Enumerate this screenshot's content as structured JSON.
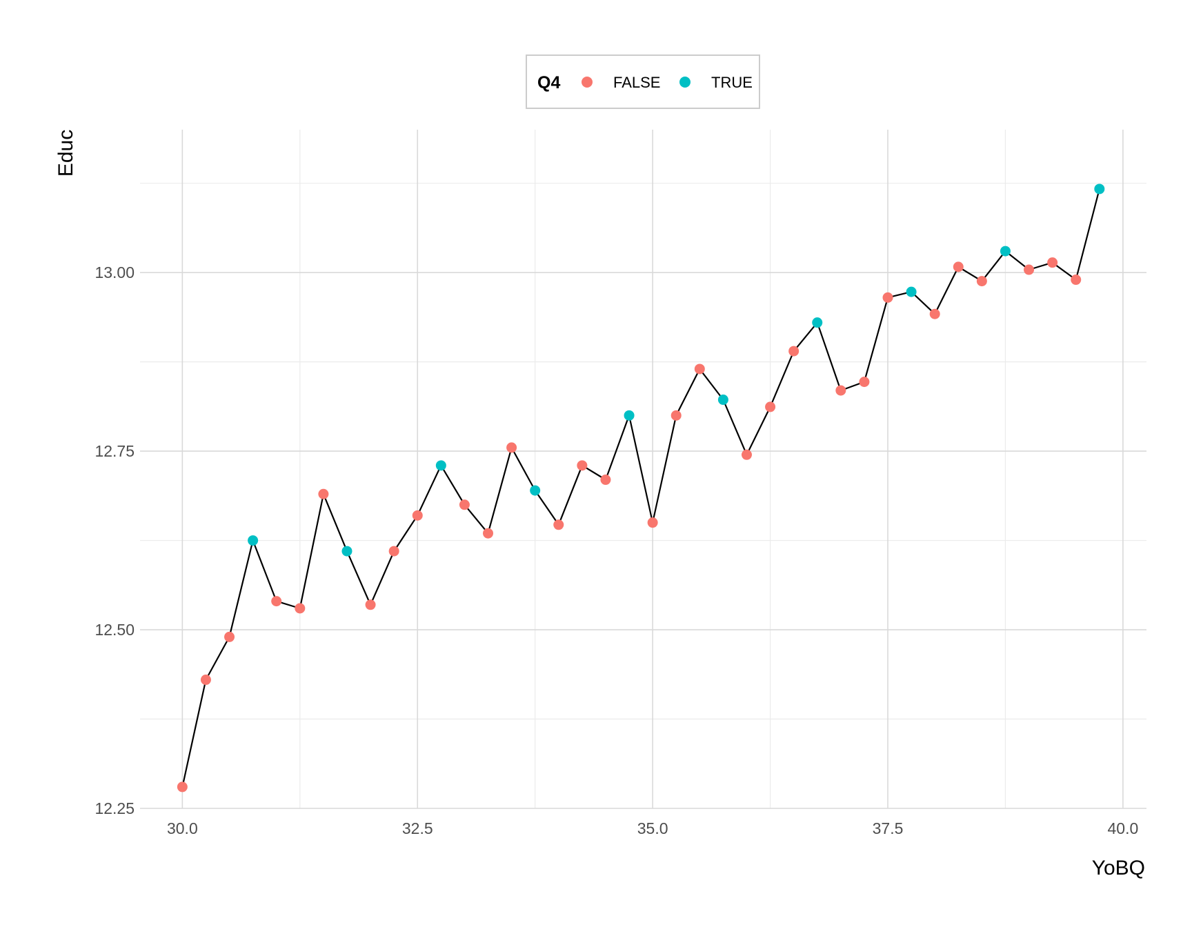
{
  "chart_data": {
    "type": "line",
    "xlabel": "YoBQ",
    "ylabel": "Educ",
    "xlim": [
      29.55,
      40.25
    ],
    "ylim": [
      12.25,
      13.2
    ],
    "x_ticks": [
      30.0,
      32.5,
      35.0,
      37.5,
      40.0
    ],
    "x_tick_labels": [
      "30.0",
      "32.5",
      "35.0",
      "37.5",
      "40.0"
    ],
    "y_ticks": [
      12.25,
      12.5,
      12.75,
      13.0
    ],
    "y_tick_labels": [
      "12.25",
      "12.50",
      "12.75",
      "13.00"
    ],
    "grid": true,
    "line_color": "#000000",
    "legend": {
      "title": "Q4",
      "position": "top",
      "entries": [
        {
          "label": "FALSE",
          "color": "#F8766D"
        },
        {
          "label": "TRUE",
          "color": "#00BFC4"
        }
      ]
    },
    "points": [
      {
        "x": 30.0,
        "y": 12.28,
        "q4": "FALSE"
      },
      {
        "x": 30.25,
        "y": 12.43,
        "q4": "FALSE"
      },
      {
        "x": 30.5,
        "y": 12.49,
        "q4": "FALSE"
      },
      {
        "x": 30.75,
        "y": 12.625,
        "q4": "TRUE"
      },
      {
        "x": 31.0,
        "y": 12.54,
        "q4": "FALSE"
      },
      {
        "x": 31.25,
        "y": 12.53,
        "q4": "FALSE"
      },
      {
        "x": 31.5,
        "y": 12.69,
        "q4": "FALSE"
      },
      {
        "x": 31.75,
        "y": 12.61,
        "q4": "TRUE"
      },
      {
        "x": 32.0,
        "y": 12.535,
        "q4": "FALSE"
      },
      {
        "x": 32.25,
        "y": 12.61,
        "q4": "FALSE"
      },
      {
        "x": 32.5,
        "y": 12.66,
        "q4": "FALSE"
      },
      {
        "x": 32.75,
        "y": 12.73,
        "q4": "TRUE"
      },
      {
        "x": 33.0,
        "y": 12.675,
        "q4": "FALSE"
      },
      {
        "x": 33.25,
        "y": 12.635,
        "q4": "FALSE"
      },
      {
        "x": 33.5,
        "y": 12.755,
        "q4": "FALSE"
      },
      {
        "x": 33.75,
        "y": 12.695,
        "q4": "TRUE"
      },
      {
        "x": 34.0,
        "y": 12.647,
        "q4": "FALSE"
      },
      {
        "x": 34.25,
        "y": 12.73,
        "q4": "FALSE"
      },
      {
        "x": 34.5,
        "y": 12.71,
        "q4": "FALSE"
      },
      {
        "x": 34.75,
        "y": 12.8,
        "q4": "TRUE"
      },
      {
        "x": 35.0,
        "y": 12.65,
        "q4": "FALSE"
      },
      {
        "x": 35.25,
        "y": 12.8,
        "q4": "FALSE"
      },
      {
        "x": 35.5,
        "y": 12.865,
        "q4": "FALSE"
      },
      {
        "x": 35.75,
        "y": 12.822,
        "q4": "TRUE"
      },
      {
        "x": 36.0,
        "y": 12.745,
        "q4": "FALSE"
      },
      {
        "x": 36.25,
        "y": 12.812,
        "q4": "FALSE"
      },
      {
        "x": 36.5,
        "y": 12.89,
        "q4": "FALSE"
      },
      {
        "x": 36.75,
        "y": 12.93,
        "q4": "TRUE"
      },
      {
        "x": 37.0,
        "y": 12.835,
        "q4": "FALSE"
      },
      {
        "x": 37.25,
        "y": 12.847,
        "q4": "FALSE"
      },
      {
        "x": 37.5,
        "y": 12.965,
        "q4": "FALSE"
      },
      {
        "x": 37.75,
        "y": 12.973,
        "q4": "TRUE"
      },
      {
        "x": 38.0,
        "y": 12.942,
        "q4": "FALSE"
      },
      {
        "x": 38.25,
        "y": 13.008,
        "q4": "FALSE"
      },
      {
        "x": 38.5,
        "y": 12.988,
        "q4": "FALSE"
      },
      {
        "x": 38.75,
        "y": 13.03,
        "q4": "TRUE"
      },
      {
        "x": 39.0,
        "y": 13.004,
        "q4": "FALSE"
      },
      {
        "x": 39.25,
        "y": 13.014,
        "q4": "FALSE"
      },
      {
        "x": 39.5,
        "y": 12.99,
        "q4": "FALSE"
      },
      {
        "x": 39.75,
        "y": 13.117,
        "q4": "TRUE"
      }
    ]
  }
}
